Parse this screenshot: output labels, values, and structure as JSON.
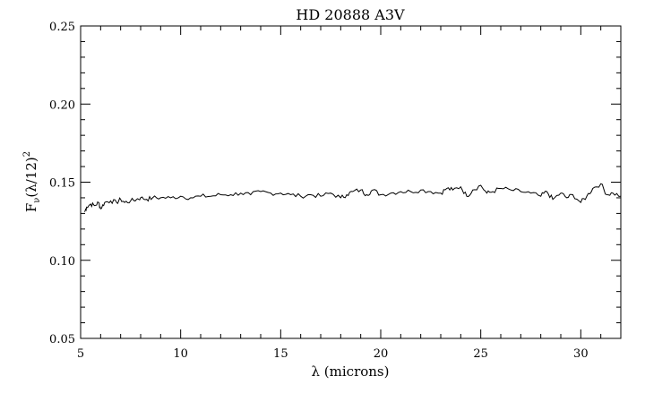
{
  "chart_data": {
    "type": "line",
    "title": "HD 20888 A3V",
    "xlabel": "λ (microns)",
    "ylabel_main": "F",
    "ylabel_sub": "ν",
    "ylabel_rest": "(λ/12)",
    "ylabel_sup": "2",
    "xlim": [
      5,
      32
    ],
    "ylim": [
      0.05,
      0.25
    ],
    "xticks": [
      5,
      10,
      15,
      20,
      25,
      30
    ],
    "xtick_labels": [
      "5",
      "10",
      "15",
      "20",
      "25",
      "30"
    ],
    "yticks": [
      0.05,
      0.1,
      0.15,
      0.2,
      0.25
    ],
    "ytick_labels": [
      "0.05",
      "0.10",
      "0.15",
      "0.20",
      "0.25"
    ],
    "x_minor_step": 1,
    "y_minor_step": 0.01,
    "grid": false,
    "line_color": "#000000",
    "series": [
      {
        "x": [
          5.2,
          5.3,
          5.5,
          5.7,
          5.9,
          6.0,
          6.2,
          6.5,
          6.8,
          7.0,
          7.2,
          7.5,
          7.8,
          8.0,
          8.3,
          8.6,
          9.0,
          9.5,
          10.0,
          10.5,
          11.0,
          11.5,
          12.0,
          12.5,
          13.0,
          13.5,
          14.0,
          14.5,
          15.0,
          15.5,
          16.0,
          16.5,
          17.0,
          17.5,
          18.0,
          18.3,
          18.6,
          19.0,
          19.3,
          19.6,
          20.0,
          20.5,
          21.0,
          21.5,
          22.0,
          22.5,
          23.0,
          23.3,
          23.6,
          24.0,
          24.3,
          24.6,
          25.0,
          25.3,
          25.6,
          26.0,
          26.5,
          27.0,
          27.5,
          28.0,
          28.3,
          28.6,
          29.0,
          29.3,
          29.6,
          30.0,
          30.3,
          30.6,
          31.0,
          31.3,
          31.6,
          32.0
        ],
        "y": [
          0.131,
          0.134,
          0.136,
          0.135,
          0.137,
          0.133,
          0.137,
          0.138,
          0.137,
          0.139,
          0.137,
          0.138,
          0.139,
          0.14,
          0.139,
          0.14,
          0.14,
          0.14,
          0.141,
          0.14,
          0.141,
          0.141,
          0.142,
          0.142,
          0.143,
          0.142,
          0.144,
          0.143,
          0.143,
          0.142,
          0.141,
          0.142,
          0.141,
          0.143,
          0.14,
          0.142,
          0.144,
          0.145,
          0.142,
          0.145,
          0.142,
          0.143,
          0.144,
          0.144,
          0.145,
          0.144,
          0.143,
          0.146,
          0.145,
          0.147,
          0.141,
          0.145,
          0.148,
          0.143,
          0.144,
          0.146,
          0.145,
          0.144,
          0.143,
          0.141,
          0.144,
          0.139,
          0.143,
          0.14,
          0.142,
          0.137,
          0.141,
          0.146,
          0.149,
          0.142,
          0.143,
          0.141
        ]
      }
    ]
  }
}
